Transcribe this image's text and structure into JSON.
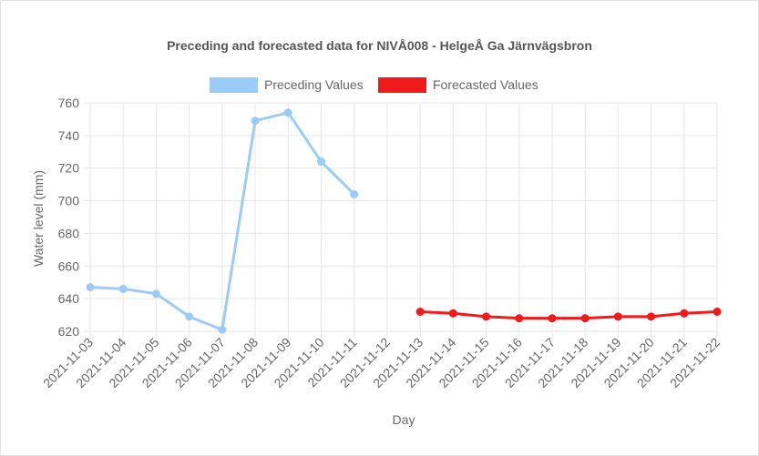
{
  "chart_data": {
    "type": "line",
    "title": "Preceding and forecasted data for NIVÅ008 - HelgeÅ Ga Järnvägsbron",
    "xlabel": "Day",
    "ylabel": "Water level (mm)",
    "ylim": [
      620,
      760
    ],
    "yticks": [
      620,
      640,
      660,
      680,
      700,
      720,
      740,
      760
    ],
    "grid": true,
    "legend_position": "top",
    "categories": [
      "2021-11-03",
      "2021-11-04",
      "2021-11-05",
      "2021-11-06",
      "2021-11-07",
      "2021-11-08",
      "2021-11-09",
      "2021-11-10",
      "2021-11-11",
      "2021-11-12",
      "2021-11-13",
      "2021-11-14",
      "2021-11-15",
      "2021-11-16",
      "2021-11-17",
      "2021-11-18",
      "2021-11-19",
      "2021-11-20",
      "2021-11-21",
      "2021-11-22"
    ],
    "series": [
      {
        "name": "Preceding Values",
        "color": "#9ccbf7",
        "values": [
          647,
          646,
          643,
          629,
          621,
          749,
          754,
          724,
          704,
          null,
          null,
          null,
          null,
          null,
          null,
          null,
          null,
          null,
          null,
          null
        ]
      },
      {
        "name": "Forecasted Values",
        "color": "#f01a1a",
        "values": [
          null,
          null,
          null,
          null,
          null,
          null,
          null,
          null,
          null,
          null,
          632,
          631,
          629,
          628,
          628,
          628,
          629,
          629,
          631,
          632
        ]
      }
    ]
  }
}
